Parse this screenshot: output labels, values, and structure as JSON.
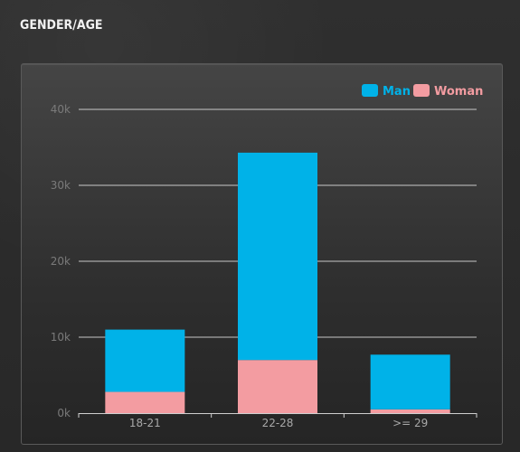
{
  "widget": {
    "heading": "GENDER/AGE"
  },
  "colors": {
    "man": "#00b2e8",
    "woman": "#f39ca1",
    "grid": "#d8d8d8",
    "axis": "#cfcfcf"
  },
  "chart_data": {
    "type": "bar",
    "stacked": true,
    "categories": [
      "18-21",
      "22-28",
      ">= 29"
    ],
    "series": [
      {
        "name": "Woman",
        "values": [
          2800,
          7000,
          500
        ]
      },
      {
        "name": "Man",
        "values": [
          8200,
          27300,
          7200
        ]
      }
    ],
    "yticks": [
      0,
      10000,
      20000,
      30000,
      40000
    ],
    "ytick_labels": [
      "0k",
      "10k",
      "20k",
      "30k",
      "40k"
    ],
    "ylim": [
      0,
      40000
    ],
    "legend_position": "top-right",
    "grid": true
  }
}
